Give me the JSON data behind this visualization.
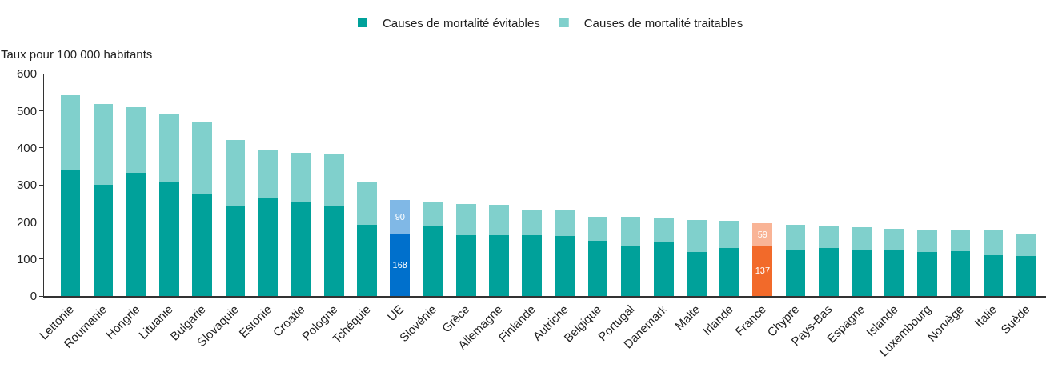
{
  "chart_data": {
    "type": "bar",
    "stacked": true,
    "ylabel": "Taux pour 100 000 habitants",
    "categories": [
      "Lettonie",
      "Roumanie",
      "Hongrie",
      "Lituanie",
      "Bulgarie",
      "Slovaquie",
      "Estonie",
      "Croatie",
      "Pologne",
      "Tchéquie",
      "UE",
      "Slovénie",
      "Grèce",
      "Allemagne",
      "Finlande",
      "Autriche",
      "Belgique",
      "Portugal",
      "Danemark",
      "Malte",
      "Irlande",
      "France",
      "Chypre",
      "Pays-Bas",
      "Espagne",
      "Islande",
      "Luxembourg",
      "Norvège",
      "Italie",
      "Suède"
    ],
    "series": [
      {
        "name": "Causes de mortalité évitables",
        "color": "#00a19a",
        "colors": [
          null,
          null,
          null,
          null,
          null,
          null,
          null,
          null,
          null,
          null,
          "#0070cc",
          null,
          null,
          null,
          null,
          null,
          null,
          null,
          null,
          null,
          null,
          "#f26a2a",
          null,
          null,
          null,
          null,
          null,
          null,
          null,
          null
        ],
        "values": [
          340,
          301,
          332,
          308,
          275,
          243,
          265,
          252,
          241,
          193,
          168,
          187,
          163,
          163,
          163,
          161,
          150,
          137,
          146,
          118,
          130,
          137,
          122,
          130,
          122,
          122,
          118,
          120,
          111,
          107
        ],
        "value_labels": [
          null,
          null,
          null,
          null,
          null,
          null,
          null,
          null,
          null,
          null,
          "168",
          null,
          null,
          null,
          null,
          null,
          null,
          null,
          null,
          null,
          null,
          "137",
          null,
          null,
          null,
          null,
          null,
          null,
          null,
          null
        ]
      },
      {
        "name": "Causes de mortalité traitables",
        "color": "#80d0cc",
        "colors": [
          null,
          null,
          null,
          null,
          null,
          null,
          null,
          null,
          null,
          null,
          "#80b8e6",
          null,
          null,
          null,
          null,
          null,
          null,
          null,
          null,
          null,
          null,
          "#f9b496",
          null,
          null,
          null,
          null,
          null,
          null,
          null,
          null
        ],
        "values": [
          201,
          217,
          178,
          184,
          195,
          177,
          127,
          134,
          140,
          115,
          90,
          65,
          86,
          84,
          71,
          71,
          63,
          76,
          65,
          86,
          72,
          59,
          71,
          61,
          63,
          60,
          60,
          58,
          65,
          60
        ],
        "value_labels": [
          null,
          null,
          null,
          null,
          null,
          null,
          null,
          null,
          null,
          null,
          "90",
          null,
          null,
          null,
          null,
          null,
          null,
          null,
          null,
          null,
          null,
          "59",
          null,
          null,
          null,
          null,
          null,
          null,
          null,
          null
        ]
      }
    ],
    "ylim": [
      0,
      600
    ],
    "yticks": [
      0,
      100,
      200,
      300,
      400,
      500,
      600
    ],
    "legend": "top"
  }
}
